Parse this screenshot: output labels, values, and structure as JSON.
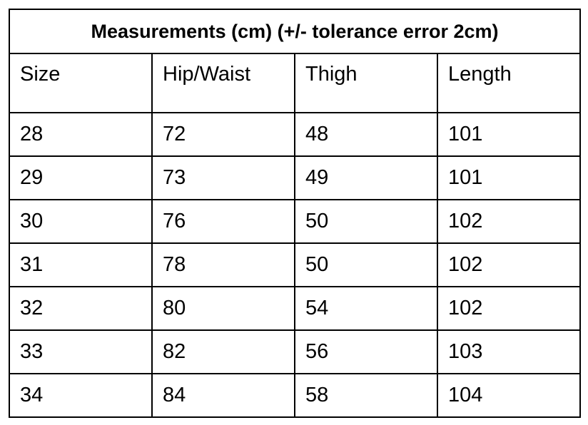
{
  "table": {
    "title": "Measurements (cm) (+/- tolerance error 2cm)",
    "header": [
      "Size",
      "Hip/Waist",
      "Thigh",
      "Length"
    ],
    "rows": [
      [
        "28",
        "72",
        "48",
        "101"
      ],
      [
        "29",
        "73",
        "49",
        "101"
      ],
      [
        "30",
        "76",
        "50",
        "102"
      ],
      [
        "31",
        "78",
        "50",
        "102"
      ],
      [
        "32",
        "80",
        "54",
        "102"
      ],
      [
        "33",
        "82",
        "56",
        "103"
      ],
      [
        "34",
        "84",
        "58",
        "104"
      ]
    ]
  }
}
